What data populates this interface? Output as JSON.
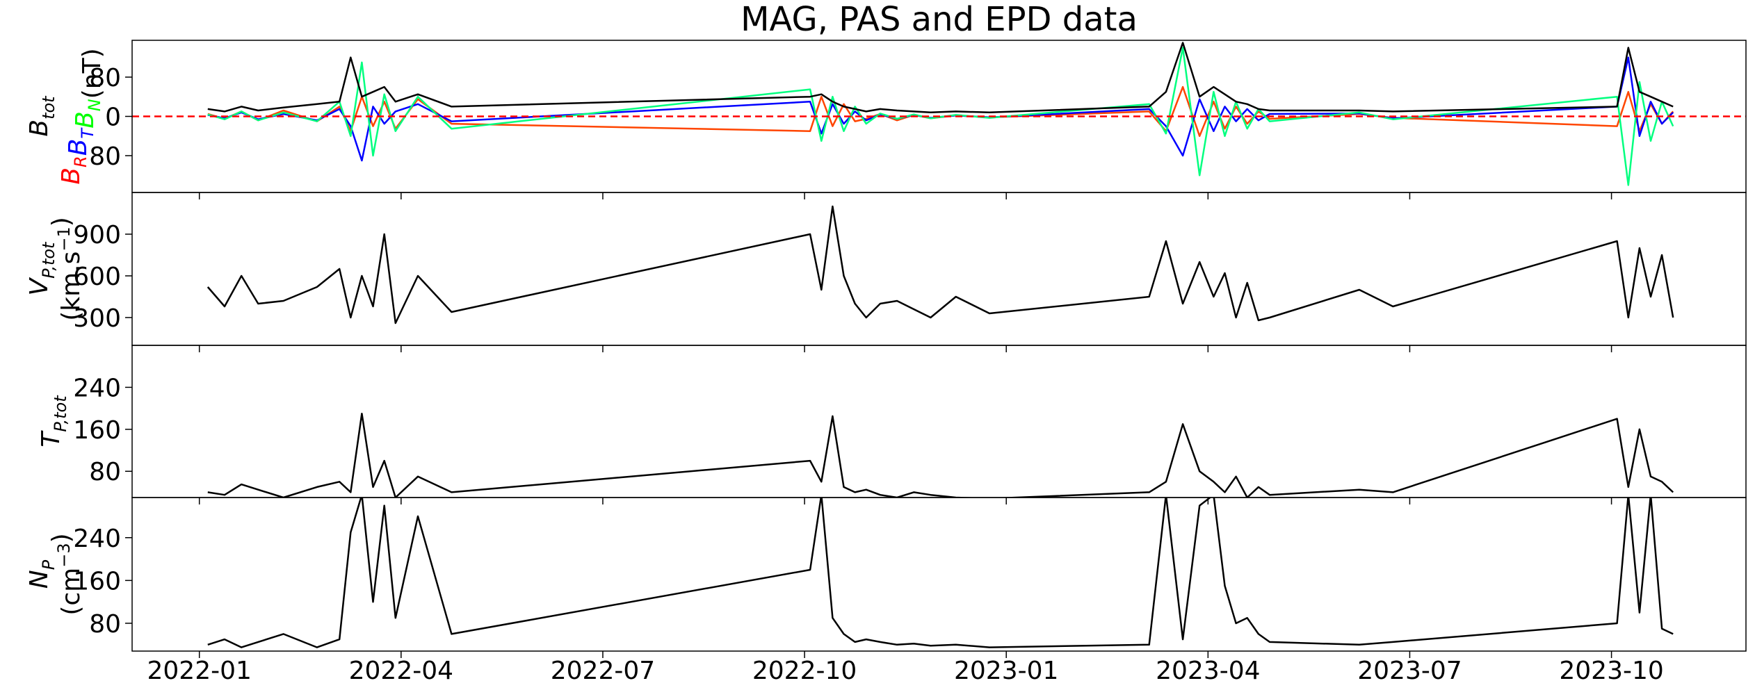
{
  "chart_data": [
    {
      "type": "line",
      "title": "MAG, PAS and EPD data",
      "ylabel_lines": [
        [
          {
            "text": "B",
            "sub": "tot",
            "italic": true
          }
        ],
        [
          {
            "text": "B",
            "sub": "R",
            "italic": true,
            "color": "#ff0000"
          },
          {
            "text": "B",
            "sub": "T",
            "italic": true,
            "color": "#0000ff"
          },
          {
            "text": "B",
            "sub": "N",
            "italic": true,
            "color": "#00ff00"
          },
          {
            "text": "(nT)"
          }
        ]
      ],
      "x": [
        "2022-01",
        "2022-01",
        "2022-01",
        "2022-01",
        "2022-02",
        "2022-02",
        "2022-03",
        "2022-03",
        "2022-03",
        "2022-03",
        "2022-03",
        "2022-03",
        "2022-04",
        "2022-04",
        "2022-10",
        "2022-10",
        "2022-10",
        "2022-10",
        "2022-10",
        "2022-10",
        "2022-11",
        "2022-11",
        "2022-11",
        "2022-11",
        "2022-12",
        "2022-12",
        "2023-03",
        "2023-03",
        "2023-03",
        "2023-03",
        "2023-04",
        "2023-04",
        "2023-04",
        "2023-04",
        "2023-04",
        "2023-04",
        "2023-06",
        "2023-06",
        "2023-10",
        "2023-10",
        "2023-10",
        "2023-10",
        "2023-10",
        "2023-10"
      ],
      "series": [
        {
          "color": "#ff4500",
          "values": [
            5,
            -5,
            10,
            -8,
            12,
            -10,
            20,
            -30,
            40,
            -20,
            30,
            -25,
            35,
            -15,
            -30,
            40,
            -20,
            25,
            -10,
            -5,
            5,
            -8,
            3,
            -4,
            2,
            -2,
            10,
            -30,
            60,
            -40,
            30,
            -25,
            20,
            -15,
            10,
            -5,
            5,
            -3,
            -20,
            50,
            -30,
            25,
            -15,
            10
          ]
        },
        {
          "color": "#0000ff",
          "values": [
            3,
            -4,
            8,
            -6,
            5,
            -8,
            15,
            -20,
            -90,
            20,
            -15,
            10,
            25,
            -10,
            30,
            -35,
            25,
            -15,
            10,
            -8,
            4,
            -5,
            3,
            -3,
            2,
            -2,
            15,
            -20,
            -80,
            35,
            -30,
            20,
            -10,
            15,
            -8,
            5,
            6,
            -4,
            20,
            120,
            -40,
            30,
            -15,
            8
          ]
        },
        {
          "color": "#00ff7f",
          "values": [
            4,
            -6,
            10,
            -8,
            8,
            -10,
            30,
            -40,
            110,
            -80,
            45,
            -30,
            40,
            -25,
            55,
            -50,
            40,
            -30,
            20,
            -15,
            6,
            -5,
            4,
            -4,
            3,
            -3,
            25,
            -35,
            140,
            -120,
            50,
            -40,
            30,
            -25,
            15,
            -10,
            8,
            -6,
            40,
            -140,
            70,
            -50,
            30,
            -20
          ]
        },
        {
          "color": "#000000",
          "values": [
            15,
            10,
            20,
            12,
            18,
            25,
            30,
            120,
            40,
            50,
            60,
            30,
            45,
            20,
            40,
            45,
            30,
            20,
            15,
            10,
            15,
            12,
            10,
            8,
            10,
            8,
            20,
            50,
            150,
            40,
            60,
            45,
            30,
            25,
            15,
            12,
            12,
            10,
            20,
            140,
            50,
            40,
            30,
            20
          ]
        }
      ],
      "reference_line": {
        "y": 0,
        "color": "#ff0000",
        "dashed": true
      },
      "xlim": [
        "2021-12",
        "2023-12"
      ],
      "ylim": [
        -155,
        155
      ],
      "yticks": [
        {
          "value": -80,
          "label": "80"
        },
        0,
        80
      ]
    },
    {
      "type": "line",
      "ylabel_lines": [
        [
          {
            "text": "V",
            "sub": "P,tot",
            "italic": true
          }
        ],
        [
          {
            "text": "(km.s"
          },
          {
            "sup": "−1"
          },
          {
            "text": ")"
          }
        ]
      ],
      "x": [
        "2022-01",
        "2022-01",
        "2022-01",
        "2022-01",
        "2022-02",
        "2022-02",
        "2022-03",
        "2022-03",
        "2022-03",
        "2022-03",
        "2022-03",
        "2022-03",
        "2022-04",
        "2022-04",
        "2022-10",
        "2022-10",
        "2022-10",
        "2022-10",
        "2022-10",
        "2022-10",
        "2022-11",
        "2022-11",
        "2022-11",
        "2022-11",
        "2022-12",
        "2022-12",
        "2023-03",
        "2023-03",
        "2023-03",
        "2023-03",
        "2023-04",
        "2023-04",
        "2023-04",
        "2023-04",
        "2023-04",
        "2023-04",
        "2023-06",
        "2023-06",
        "2023-10",
        "2023-10",
        "2023-10",
        "2023-10",
        "2023-10",
        "2023-10"
      ],
      "series": [
        {
          "color": "#000000",
          "values": [
            520,
            380,
            600,
            400,
            420,
            520,
            650,
            300,
            600,
            380,
            900,
            260,
            600,
            340,
            900,
            500,
            1100,
            600,
            400,
            300,
            400,
            420,
            360,
            300,
            450,
            330,
            450,
            850,
            400,
            700,
            450,
            620,
            300,
            550,
            280,
            300,
            500,
            380,
            850,
            300,
            800,
            450,
            750,
            300
          ]
        }
      ],
      "xlim": [
        "2021-12",
        "2023-12"
      ],
      "ylim": [
        100,
        1200
      ],
      "yticks": [
        300,
        600,
        900
      ]
    },
    {
      "type": "line",
      "ylabel_lines": [
        [
          {
            "text": "T",
            "sub": "P,tot",
            "italic": true
          }
        ]
      ],
      "x": [
        "2022-01",
        "2022-01",
        "2022-01",
        "2022-01",
        "2022-02",
        "2022-02",
        "2022-03",
        "2022-03",
        "2022-03",
        "2022-03",
        "2022-03",
        "2022-03",
        "2022-04",
        "2022-04",
        "2022-10",
        "2022-10",
        "2022-10",
        "2022-10",
        "2022-10",
        "2022-10",
        "2022-11",
        "2022-11",
        "2022-11",
        "2022-11",
        "2022-12",
        "2022-12",
        "2023-03",
        "2023-03",
        "2023-03",
        "2023-03",
        "2023-04",
        "2023-04",
        "2023-04",
        "2023-04",
        "2023-04",
        "2023-04",
        "2023-06",
        "2023-06",
        "2023-10",
        "2023-10",
        "2023-10",
        "2023-10",
        "2023-10",
        "2023-10"
      ],
      "series": [
        {
          "color": "#000000",
          "values": [
            40,
            35,
            55,
            45,
            30,
            50,
            60,
            40,
            190,
            50,
            100,
            30,
            70,
            40,
            100,
            60,
            185,
            50,
            40,
            45,
            35,
            30,
            40,
            35,
            30,
            28,
            40,
            60,
            170,
            80,
            60,
            40,
            70,
            30,
            50,
            35,
            45,
            40,
            180,
            50,
            160,
            70,
            60,
            40
          ]
        }
      ],
      "xlim": [
        "2021-12",
        "2023-12"
      ],
      "ylim": [
        30,
        320
      ],
      "yticks": [
        80,
        160,
        240
      ]
    },
    {
      "type": "line",
      "ylabel_lines": [
        [
          {
            "text": "N",
            "sub": "P",
            "italic": true
          }
        ],
        [
          {
            "text": "(cm"
          },
          {
            "sup": "−3"
          },
          {
            "text": ")"
          }
        ]
      ],
      "x": [
        "2022-01",
        "2022-01",
        "2022-01",
        "2022-01",
        "2022-02",
        "2022-02",
        "2022-03",
        "2022-03",
        "2022-03",
        "2022-03",
        "2022-03",
        "2022-03",
        "2022-04",
        "2022-04",
        "2022-10",
        "2022-10",
        "2022-10",
        "2022-10",
        "2022-10",
        "2022-10",
        "2022-11",
        "2022-11",
        "2022-11",
        "2022-11",
        "2022-12",
        "2022-12",
        "2023-03",
        "2023-03",
        "2023-03",
        "2023-03",
        "2023-04",
        "2023-04",
        "2023-04",
        "2023-04",
        "2023-04",
        "2023-04",
        "2023-06",
        "2023-06",
        "2023-10",
        "2023-10",
        "2023-10",
        "2023-10",
        "2023-10",
        "2023-10"
      ],
      "series": [
        {
          "color": "#000000",
          "values": [
            40,
            50,
            35,
            45,
            60,
            35,
            50,
            250,
            320,
            120,
            300,
            90,
            280,
            60,
            180,
            320,
            90,
            60,
            45,
            50,
            45,
            40,
            42,
            38,
            40,
            35,
            40,
            320,
            50,
            300,
            320,
            150,
            80,
            90,
            60,
            45,
            40,
            45,
            80,
            320,
            100,
            320,
            70,
            60
          ]
        }
      ],
      "xlim": [
        "2021-12",
        "2023-12"
      ],
      "ylim": [
        28,
        315
      ],
      "yticks": [
        80,
        160,
        240
      ],
      "xticks": [
        "2022-01",
        "2022-04",
        "2022-07",
        "2022-10",
        "2023-01",
        "2023-04",
        "2023-07",
        "2023-10"
      ]
    }
  ]
}
